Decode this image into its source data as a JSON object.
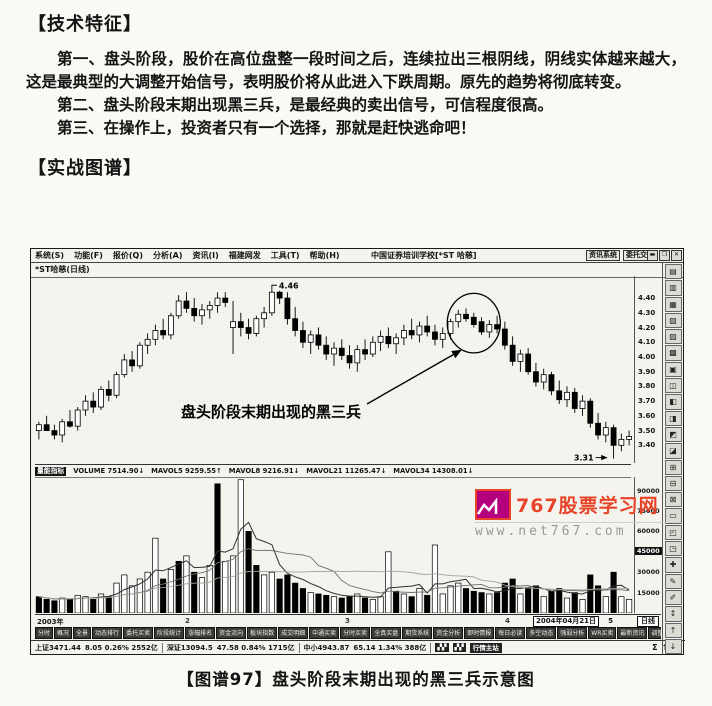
{
  "page": {
    "section1_title": "【技术特征】",
    "paragraphs": [
      "第一、盘头阶段，股价在高位盘整一段时间之后，连续拉出三根阴线，阴线实体越来越大，这是最典型的大调整开始信号，表明股价将从此进入下跌周期。原先的趋势将彻底转变。",
      "第二、盘头阶段末期出现黑三兵，是最经典的卖出信号，可信程度很高。",
      "第三、在操作上，投资者只有一个选择，那就是赶快逃命吧！"
    ],
    "section2_title": "【实战图谱】",
    "caption": "【图谱97】盘头阶段末期出现的黑三兵示意图"
  },
  "terminal": {
    "menu_items": [
      "系统(S)",
      "功能(F)",
      "报价(Q)",
      "分析(A)",
      "资讯(I)",
      "福建网发",
      "工具(T)",
      "帮助(H)"
    ],
    "window_title": "中国证券培训学校[*ST 哈慈]",
    "header_buttons": [
      "资讯系统",
      "委托交易"
    ],
    "window_controls": [
      "▬",
      "❐",
      "✕"
    ],
    "chart_label": "*ST哈慈(日线)",
    "price_axis": [
      "4.40",
      "4.30",
      "4.20",
      "4.10",
      "4.00",
      "3.90",
      "3.80",
      "3.70",
      "3.60",
      "3.50",
      "3.40"
    ],
    "annotations": {
      "peak_label": "4.46",
      "low_label": "3.31",
      "callout": "盘头阶段末期出现的黑三兵"
    },
    "volume_header": {
      "indicator": "量能指标",
      "items": [
        "VOLUME 7514.90↓",
        "MAVOL5 9259.55↑",
        "MAVOL8 9216.91↓",
        "MAVOL21 11265.47↓",
        "MAVOL34 14308.01↓"
      ]
    },
    "volume_axis": [
      "90000",
      "75000",
      "60000",
      "45000",
      "30000",
      "15000"
    ],
    "volume_tag": "45000",
    "date_axis": {
      "left": "2003年",
      "ticks": [
        "2",
        "3",
        "4"
      ],
      "current": "2004年04月21日",
      "suffix": "5",
      "period": "日线"
    },
    "tabs": [
      "分时",
      "概况",
      "全景",
      "动态排行",
      "委托买卖",
      "阶段统计",
      "涨幅排名",
      "资金流向",
      "板块指数",
      "成交明细",
      "中通买卖",
      "分时买卖",
      "全真买盘",
      "期货系统",
      "资金分析",
      "即时情报",
      "每日必读",
      "多空动态",
      "强弱分析",
      "WR买卖",
      "最新资讯",
      "调整提示",
      "回购合约",
      "股市日记"
    ],
    "status": {
      "segments": [
        [
          "上证3471.44",
          "8.05",
          "0.26%",
          "2552亿"
        ],
        [
          "深证13094.5",
          "47.58",
          "0.84%",
          "1715亿"
        ],
        [
          "中小4943.87",
          "65.14",
          "1.34%",
          "388亿"
        ]
      ],
      "dark_label": "行情主站",
      "right_icons": [
        "Σ",
        "↑",
        "↓"
      ]
    },
    "toolbar_icons": [
      "▤",
      "▥",
      "▦",
      "▧",
      "▨",
      "▩",
      "▣",
      "◫",
      "◧",
      "◨",
      "◩",
      "◪",
      "⊞",
      "⊟",
      "⊠",
      "▭",
      "◰",
      "◳",
      "✚",
      "✎",
      "✐",
      "↕",
      "↑",
      "↓"
    ]
  },
  "watermark": {
    "title": "767股票学习网",
    "url": "www.net767.com",
    "accent": "#e8442a",
    "logo_fill": "#b5007d"
  },
  "chart_data": {
    "type": "candlestick",
    "symbol": "*ST哈慈",
    "period": "日线",
    "price_range": [
      3.28,
      4.55
    ],
    "volume_max": 100000,
    "peak_candle": 31,
    "low_candle": 75,
    "crows_range": [
      55,
      59
    ],
    "callout_pos": [
      332,
      128
    ],
    "candles": [
      [
        3.5,
        3.56,
        3.44,
        3.54
      ],
      [
        3.54,
        3.6,
        3.5,
        3.5
      ],
      [
        3.5,
        3.54,
        3.44,
        3.47
      ],
      [
        3.47,
        3.58,
        3.42,
        3.56
      ],
      [
        3.56,
        3.64,
        3.52,
        3.53
      ],
      [
        3.53,
        3.66,
        3.5,
        3.64
      ],
      [
        3.64,
        3.74,
        3.6,
        3.7
      ],
      [
        3.7,
        3.76,
        3.62,
        3.66
      ],
      [
        3.66,
        3.8,
        3.64,
        3.78
      ],
      [
        3.78,
        3.84,
        3.7,
        3.74
      ],
      [
        3.74,
        3.9,
        3.72,
        3.88
      ],
      [
        3.88,
        4.02,
        3.86,
        3.98
      ],
      [
        3.98,
        4.04,
        3.9,
        3.94
      ],
      [
        3.94,
        4.1,
        3.92,
        4.08
      ],
      [
        4.08,
        4.16,
        4.02,
        4.12
      ],
      [
        4.12,
        4.22,
        4.08,
        4.18
      ],
      [
        4.18,
        4.26,
        4.12,
        4.15
      ],
      [
        4.15,
        4.3,
        4.12,
        4.28
      ],
      [
        4.28,
        4.42,
        4.26,
        4.38
      ],
      [
        4.38,
        4.44,
        4.3,
        4.33
      ],
      [
        4.33,
        4.4,
        4.24,
        4.28
      ],
      [
        4.28,
        4.36,
        4.22,
        4.32
      ],
      [
        4.32,
        4.38,
        4.26,
        4.35
      ],
      [
        4.35,
        4.44,
        4.3,
        4.4
      ],
      [
        4.4,
        4.44,
        4.34,
        4.37
      ],
      [
        4.2,
        4.38,
        4.02,
        4.24
      ],
      [
        4.24,
        4.3,
        4.14,
        4.2
      ],
      [
        4.2,
        4.26,
        4.12,
        4.16
      ],
      [
        4.16,
        4.28,
        4.14,
        4.26
      ],
      [
        4.26,
        4.34,
        4.2,
        4.3
      ],
      [
        4.3,
        4.46,
        4.28,
        4.44
      ],
      [
        4.44,
        4.45,
        4.36,
        4.4
      ],
      [
        4.4,
        4.44,
        4.22,
        4.26
      ],
      [
        4.26,
        4.34,
        4.14,
        4.18
      ],
      [
        4.18,
        4.24,
        4.06,
        4.1
      ],
      [
        4.1,
        4.18,
        4.02,
        4.15
      ],
      [
        4.15,
        4.2,
        4.05,
        4.08
      ],
      [
        4.08,
        4.14,
        3.98,
        4.02
      ],
      [
        4.02,
        4.1,
        3.94,
        4.06
      ],
      [
        4.06,
        4.12,
        3.98,
        4.01
      ],
      [
        4.01,
        4.08,
        3.92,
        3.96
      ],
      [
        3.96,
        4.08,
        3.9,
        4.05
      ],
      [
        4.05,
        4.12,
        3.98,
        4.02
      ],
      [
        4.02,
        4.14,
        4.0,
        4.1
      ],
      [
        4.1,
        4.18,
        4.04,
        4.14
      ],
      [
        4.14,
        4.2,
        4.06,
        4.09
      ],
      [
        4.09,
        4.16,
        4.02,
        4.13
      ],
      [
        4.13,
        4.22,
        4.08,
        4.18
      ],
      [
        4.18,
        4.26,
        4.12,
        4.15
      ],
      [
        4.15,
        4.24,
        4.1,
        4.21
      ],
      [
        4.21,
        4.28,
        4.14,
        4.17
      ],
      [
        4.17,
        4.22,
        4.08,
        4.12
      ],
      [
        4.12,
        4.2,
        4.06,
        4.16
      ],
      [
        4.16,
        4.26,
        4.12,
        4.24
      ],
      [
        4.24,
        4.32,
        4.2,
        4.29
      ],
      [
        4.29,
        4.33,
        4.24,
        4.26
      ],
      [
        4.27,
        4.3,
        4.2,
        4.22
      ],
      [
        4.24,
        4.27,
        4.15,
        4.17
      ],
      [
        4.17,
        4.25,
        4.13,
        4.22
      ],
      [
        4.22,
        4.28,
        4.16,
        4.19
      ],
      [
        4.19,
        4.24,
        4.05,
        4.08
      ],
      [
        4.08,
        4.14,
        3.94,
        3.97
      ],
      [
        3.97,
        4.05,
        3.9,
        4.02
      ],
      [
        4.02,
        4.06,
        3.88,
        3.9
      ],
      [
        3.9,
        3.96,
        3.8,
        3.83
      ],
      [
        3.83,
        3.92,
        3.78,
        3.88
      ],
      [
        3.88,
        3.9,
        3.74,
        3.77
      ],
      [
        3.77,
        3.84,
        3.68,
        3.71
      ],
      [
        3.71,
        3.8,
        3.66,
        3.76
      ],
      [
        3.76,
        3.79,
        3.62,
        3.65
      ],
      [
        3.65,
        3.74,
        3.6,
        3.7
      ],
      [
        3.7,
        3.72,
        3.52,
        3.55
      ],
      [
        3.55,
        3.62,
        3.44,
        3.47
      ],
      [
        3.47,
        3.56,
        3.42,
        3.52
      ],
      [
        3.52,
        3.54,
        3.31,
        3.4
      ],
      [
        3.4,
        3.48,
        3.36,
        3.44
      ],
      [
        3.44,
        3.5,
        3.4,
        3.46
      ]
    ],
    "volumes": [
      [
        12000,
        "b"
      ],
      [
        10000,
        "b"
      ],
      [
        9000,
        "b"
      ],
      [
        11000,
        "w"
      ],
      [
        10000,
        "b"
      ],
      [
        13000,
        "w"
      ],
      [
        12000,
        "w"
      ],
      [
        10000,
        "b"
      ],
      [
        14000,
        "w"
      ],
      [
        12000,
        "b"
      ],
      [
        22000,
        "w"
      ],
      [
        28000,
        "w"
      ],
      [
        20000,
        "w"
      ],
      [
        25000,
        "w"
      ],
      [
        30000,
        "w"
      ],
      [
        55000,
        "w"
      ],
      [
        25000,
        "b"
      ],
      [
        32000,
        "w"
      ],
      [
        38000,
        "b"
      ],
      [
        42000,
        "w"
      ],
      [
        30000,
        "b"
      ],
      [
        26000,
        "w"
      ],
      [
        35000,
        "w"
      ],
      [
        95000,
        "b"
      ],
      [
        38000,
        "w"
      ],
      [
        42000,
        "w"
      ],
      [
        98000,
        "w"
      ],
      [
        60000,
        "b"
      ],
      [
        35000,
        "b"
      ],
      [
        28000,
        "w"
      ],
      [
        30000,
        "w"
      ],
      [
        25000,
        "b"
      ],
      [
        28000,
        "b"
      ],
      [
        22000,
        "b"
      ],
      [
        18000,
        "b"
      ],
      [
        15000,
        "w"
      ],
      [
        14000,
        "b"
      ],
      [
        13000,
        "b"
      ],
      [
        12000,
        "w"
      ],
      [
        11000,
        "b"
      ],
      [
        12000,
        "b"
      ],
      [
        14000,
        "w"
      ],
      [
        11000,
        "b"
      ],
      [
        10000,
        "w"
      ],
      [
        12000,
        "w"
      ],
      [
        45000,
        "w"
      ],
      [
        16000,
        "b"
      ],
      [
        14000,
        "w"
      ],
      [
        12000,
        "b"
      ],
      [
        18000,
        "w"
      ],
      [
        13000,
        "b"
      ],
      [
        50000,
        "w"
      ],
      [
        14000,
        "w"
      ],
      [
        20000,
        "w"
      ],
      [
        22000,
        "w"
      ],
      [
        18000,
        "b"
      ],
      [
        16000,
        "b"
      ],
      [
        15000,
        "b"
      ],
      [
        14000,
        "w"
      ],
      [
        15000,
        "b"
      ],
      [
        22000,
        "b"
      ],
      [
        25000,
        "b"
      ],
      [
        14000,
        "w"
      ],
      [
        18000,
        "b"
      ],
      [
        20000,
        "b"
      ],
      [
        12000,
        "w"
      ],
      [
        16000,
        "b"
      ],
      [
        18000,
        "b"
      ],
      [
        11000,
        "w"
      ],
      [
        15000,
        "b"
      ],
      [
        10000,
        "w"
      ],
      [
        28000,
        "b"
      ],
      [
        20000,
        "b"
      ],
      [
        12000,
        "w"
      ],
      [
        30000,
        "b"
      ],
      [
        12000,
        "w"
      ],
      [
        10000,
        "w"
      ]
    ]
  }
}
